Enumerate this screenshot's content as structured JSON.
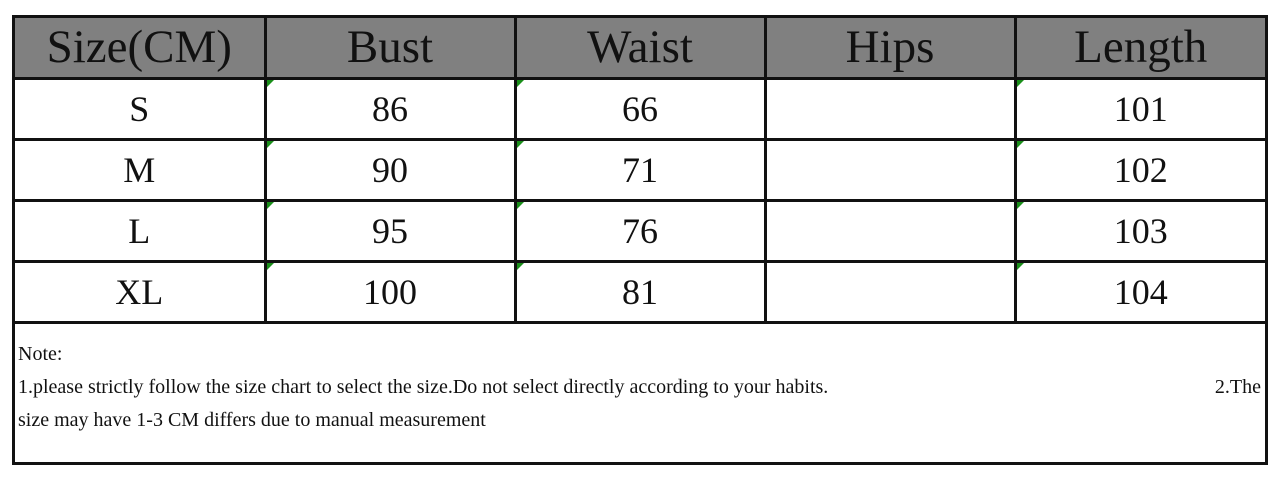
{
  "table": {
    "headers": [
      "Size(CM)",
      "Bust",
      "Waist",
      "Hips",
      "Length"
    ],
    "rows": [
      [
        "S",
        "86",
        "66",
        "",
        "101"
      ],
      [
        "M",
        "90",
        "71",
        "",
        "102"
      ],
      [
        "L",
        "95",
        "76",
        "",
        "103"
      ],
      [
        "XL",
        "100",
        "81",
        "",
        "104"
      ]
    ],
    "header_bg": "#808080"
  },
  "note": {
    "title": "Note:",
    "line1_a": "1.please strictly follow the size chart to select the size.Do not select directly according to your habits.",
    "line1_b": "2.The",
    "line2": "size may have 1-3 CM differs due to manual measurement"
  }
}
